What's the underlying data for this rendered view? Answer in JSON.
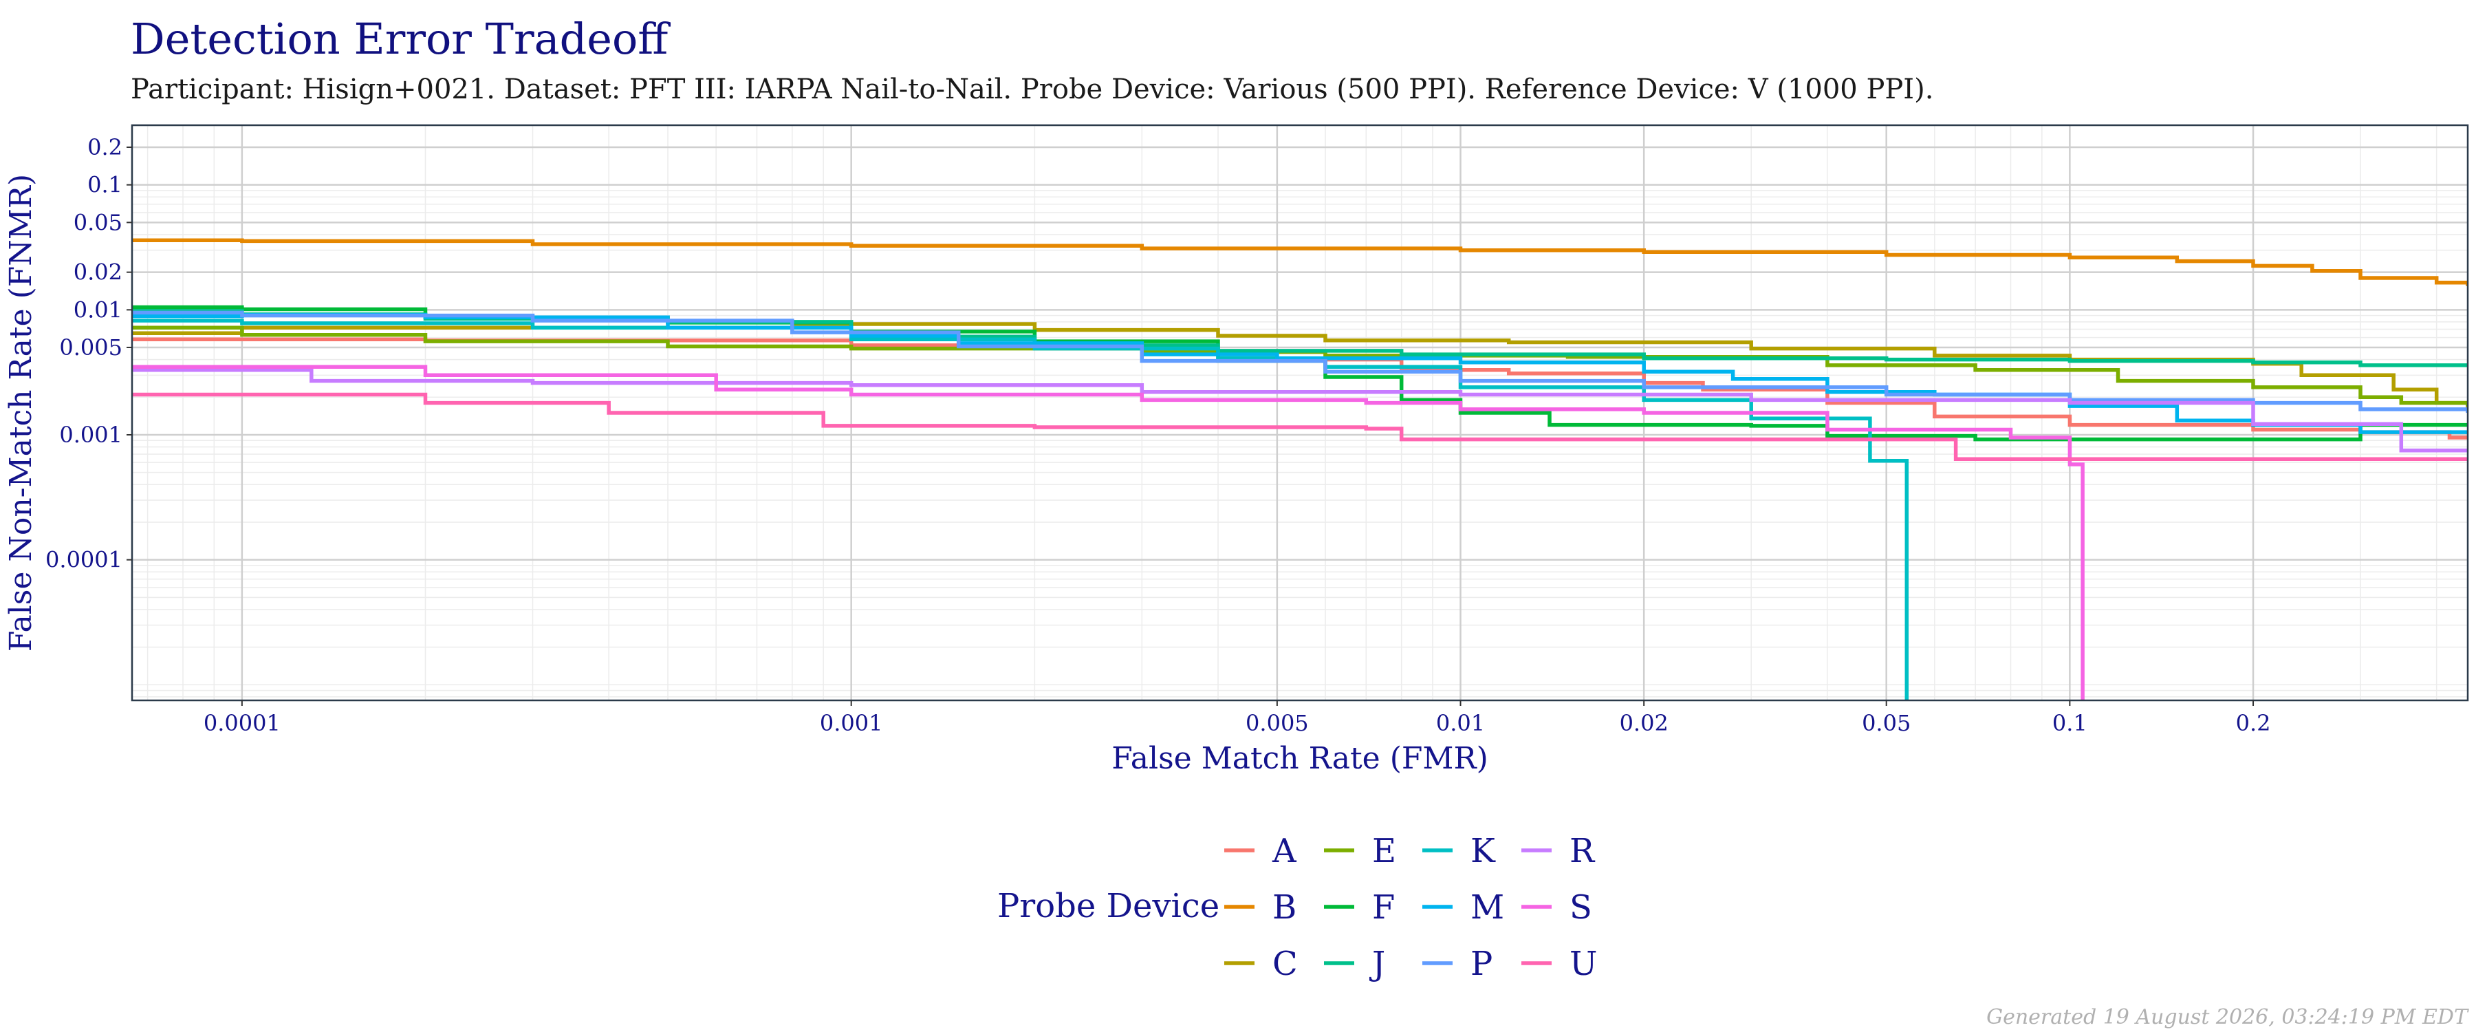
{
  "chart_data": {
    "type": "line",
    "title": "Detection Error Tradeoff",
    "subtitle": "Participant: Hisign+0021. Dataset: PFT III: IARPA Nail-to-Nail. Probe Device: Various (500 PPI). Reference Device: V (1000 PPI).",
    "xlabel": "False Match Rate (FMR)",
    "ylabel": "False Non-Match Rate (FNMR)",
    "x_scale": "log",
    "y_scale": "log",
    "xlim": [
      6.6e-05,
      0.45
    ],
    "ylim": [
      7.5e-06,
      0.3
    ],
    "x_ticks": [
      0.0001,
      0.001,
      0.005,
      0.01,
      0.02,
      0.05,
      0.1,
      0.2
    ],
    "x_tick_labels": [
      "0.0001",
      "0.001",
      "0.005",
      "0.01",
      "0.02",
      "0.05",
      "0.1",
      "0.2"
    ],
    "y_ticks": [
      0.2,
      0.1,
      0.05,
      0.02,
      0.01,
      0.005,
      0.001,
      0.0001
    ],
    "y_tick_labels": [
      "0.2",
      "0.1",
      "0.05",
      "0.02",
      "0.01",
      "0.005",
      "0.001",
      "0.0001"
    ],
    "grid": true,
    "legend_title": "Probe Device",
    "legend_position": "bottom",
    "footer": "Generated 19 August 2026, 03:24:19 PM EDT",
    "series": [
      {
        "name": "A",
        "color": "#F8766D",
        "points": [
          [
            6.6e-05,
            0.0058
          ],
          [
            0.0002,
            0.0057
          ],
          [
            0.001,
            0.0052
          ],
          [
            0.003,
            0.0046
          ],
          [
            0.006,
            0.004
          ],
          [
            0.008,
            0.0033
          ],
          [
            0.012,
            0.0031
          ],
          [
            0.02,
            0.0026
          ],
          [
            0.025,
            0.0023
          ],
          [
            0.04,
            0.0018
          ],
          [
            0.06,
            0.0014
          ],
          [
            0.1,
            0.0012
          ],
          [
            0.2,
            0.0011
          ],
          [
            0.3,
            0.00105
          ],
          [
            0.42,
            0.00095
          ],
          [
            0.45,
            0.00095
          ]
        ]
      },
      {
        "name": "B",
        "color": "#E58700",
        "points": [
          [
            6.6e-05,
            0.036
          ],
          [
            0.0001,
            0.0355
          ],
          [
            0.0003,
            0.0335
          ],
          [
            0.001,
            0.0325
          ],
          [
            0.003,
            0.031
          ],
          [
            0.01,
            0.03
          ],
          [
            0.02,
            0.029
          ],
          [
            0.05,
            0.0275
          ],
          [
            0.1,
            0.0262
          ],
          [
            0.15,
            0.0245
          ],
          [
            0.2,
            0.0225
          ],
          [
            0.25,
            0.0205
          ],
          [
            0.3,
            0.018
          ],
          [
            0.4,
            0.0165
          ],
          [
            0.45,
            0.0155
          ]
        ]
      },
      {
        "name": "C",
        "color": "#B39F00",
        "points": [
          [
            6.6e-05,
            0.0065
          ],
          [
            0.0001,
            0.0072
          ],
          [
            0.0008,
            0.0076
          ],
          [
            0.001,
            0.0077
          ],
          [
            0.002,
            0.0069
          ],
          [
            0.004,
            0.0062
          ],
          [
            0.006,
            0.0057
          ],
          [
            0.012,
            0.0055
          ],
          [
            0.03,
            0.0049
          ],
          [
            0.06,
            0.0043
          ],
          [
            0.1,
            0.004
          ],
          [
            0.2,
            0.0037
          ],
          [
            0.24,
            0.003
          ],
          [
            0.34,
            0.0023
          ],
          [
            0.4,
            0.0018
          ],
          [
            0.45,
            0.0016
          ]
        ]
      },
      {
        "name": "E",
        "color": "#7CAE00",
        "points": [
          [
            6.6e-05,
            0.0072
          ],
          [
            0.0001,
            0.0063
          ],
          [
            0.0002,
            0.0056
          ],
          [
            0.0005,
            0.0051
          ],
          [
            0.001,
            0.0049
          ],
          [
            0.003,
            0.0046
          ],
          [
            0.006,
            0.0043
          ],
          [
            0.015,
            0.0042
          ],
          [
            0.04,
            0.0036
          ],
          [
            0.07,
            0.0033
          ],
          [
            0.12,
            0.0027
          ],
          [
            0.2,
            0.0024
          ],
          [
            0.3,
            0.002
          ],
          [
            0.35,
            0.0018
          ],
          [
            0.45,
            0.0017
          ]
        ]
      },
      {
        "name": "F",
        "color": "#00BA38",
        "points": [
          [
            6.6e-05,
            0.0105
          ],
          [
            0.0001,
            0.0101
          ],
          [
            0.0002,
            0.0087
          ],
          [
            0.0005,
            0.0079
          ],
          [
            0.001,
            0.0067
          ],
          [
            0.002,
            0.0056
          ],
          [
            0.004,
            0.0039
          ],
          [
            0.006,
            0.0029
          ],
          [
            0.008,
            0.0019
          ],
          [
            0.01,
            0.0015
          ],
          [
            0.014,
            0.0012
          ],
          [
            0.03,
            0.00118
          ],
          [
            0.04,
            0.00098
          ],
          [
            0.07,
            0.00092
          ],
          [
            0.2,
            0.00092
          ],
          [
            0.3,
            0.0012
          ],
          [
            0.45,
            0.0012
          ]
        ]
      },
      {
        "name": "J",
        "color": "#00C08B",
        "points": [
          [
            6.6e-05,
            0.0098
          ],
          [
            0.0001,
            0.0092
          ],
          [
            0.0002,
            0.0085
          ],
          [
            0.0005,
            0.008
          ],
          [
            0.001,
            0.0061
          ],
          [
            0.002,
            0.0052
          ],
          [
            0.004,
            0.0047
          ],
          [
            0.008,
            0.0044
          ],
          [
            0.02,
            0.0041
          ],
          [
            0.05,
            0.004
          ],
          [
            0.1,
            0.0039
          ],
          [
            0.2,
            0.0038
          ],
          [
            0.3,
            0.0036
          ],
          [
            0.45,
            0.0036
          ]
        ]
      },
      {
        "name": "K",
        "color": "#00BFC4",
        "points": [
          [
            6.6e-05,
            0.0082
          ],
          [
            0.0001,
            0.0078
          ],
          [
            0.0003,
            0.0072
          ],
          [
            0.001,
            0.0058
          ],
          [
            0.002,
            0.0049
          ],
          [
            0.004,
            0.0041
          ],
          [
            0.006,
            0.0035
          ],
          [
            0.01,
            0.0024
          ],
          [
            0.02,
            0.0019
          ],
          [
            0.03,
            0.00135
          ],
          [
            0.047,
            0.00062
          ],
          [
            0.054,
            0.00062
          ],
          [
            0.054,
            7.5e-06
          ]
        ]
      },
      {
        "name": "M",
        "color": "#00B4EF",
        "points": [
          [
            6.6e-05,
            0.0089
          ],
          [
            0.0001,
            0.0091
          ],
          [
            0.0002,
            0.0087
          ],
          [
            0.0005,
            0.0072
          ],
          [
            0.001,
            0.0062
          ],
          [
            0.0015,
            0.0054
          ],
          [
            0.003,
            0.0044
          ],
          [
            0.005,
            0.0041
          ],
          [
            0.01,
            0.0038
          ],
          [
            0.02,
            0.0032
          ],
          [
            0.028,
            0.0028
          ],
          [
            0.04,
            0.0022
          ],
          [
            0.06,
            0.0021
          ],
          [
            0.1,
            0.0017
          ],
          [
            0.15,
            0.0013
          ],
          [
            0.2,
            0.0012
          ],
          [
            0.3,
            0.00105
          ],
          [
            0.45,
            0.00105
          ]
        ]
      },
      {
        "name": "P",
        "color": "#619CFF",
        "points": [
          [
            6.6e-05,
            0.0095
          ],
          [
            0.0001,
            0.009
          ],
          [
            0.0003,
            0.0082
          ],
          [
            0.0008,
            0.0066
          ],
          [
            0.0015,
            0.0051
          ],
          [
            0.003,
            0.0039
          ],
          [
            0.006,
            0.0032
          ],
          [
            0.01,
            0.0027
          ],
          [
            0.02,
            0.0024
          ],
          [
            0.05,
            0.0021
          ],
          [
            0.1,
            0.0019
          ],
          [
            0.2,
            0.0018
          ],
          [
            0.3,
            0.0016
          ],
          [
            0.45,
            0.0015
          ]
        ]
      },
      {
        "name": "R",
        "color": "#C77CFF",
        "points": [
          [
            6.6e-05,
            0.0033
          ],
          [
            0.00013,
            0.0027
          ],
          [
            0.0003,
            0.0026
          ],
          [
            0.001,
            0.0025
          ],
          [
            0.003,
            0.0022
          ],
          [
            0.01,
            0.0021
          ],
          [
            0.03,
            0.0019
          ],
          [
            0.06,
            0.0019
          ],
          [
            0.1,
            0.0018
          ],
          [
            0.2,
            0.00122
          ],
          [
            0.35,
            0.00075
          ],
          [
            0.45,
            0.00075
          ]
        ]
      },
      {
        "name": "S",
        "color": "#F564E3",
        "points": [
          [
            6.6e-05,
            0.0035
          ],
          [
            0.0002,
            0.003
          ],
          [
            0.0006,
            0.0023
          ],
          [
            0.001,
            0.0021
          ],
          [
            0.003,
            0.0019
          ],
          [
            0.007,
            0.0018
          ],
          [
            0.01,
            0.0016
          ],
          [
            0.02,
            0.0015
          ],
          [
            0.04,
            0.0011
          ],
          [
            0.08,
            0.00095
          ],
          [
            0.1,
            0.00058
          ],
          [
            0.105,
            0.00058
          ],
          [
            0.105,
            7.5e-06
          ]
        ]
      },
      {
        "name": "U",
        "color": "#FF64B0",
        "points": [
          [
            6.6e-05,
            0.0021
          ],
          [
            0.0002,
            0.0018
          ],
          [
            0.0004,
            0.0015
          ],
          [
            0.0009,
            0.00118
          ],
          [
            0.002,
            0.00115
          ],
          [
            0.007,
            0.00112
          ],
          [
            0.008,
            0.00092
          ],
          [
            0.02,
            0.00092
          ],
          [
            0.065,
            0.00092
          ],
          [
            0.065,
            0.00064
          ],
          [
            0.2,
            0.00064
          ],
          [
            0.45,
            0.00064
          ]
        ]
      }
    ]
  }
}
